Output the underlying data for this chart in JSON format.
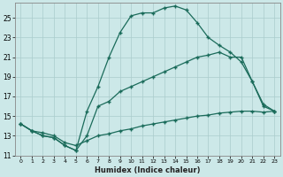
{
  "xlabel": "Humidex (Indice chaleur)",
  "background_color": "#cce8e8",
  "grid_color": "#aacccc",
  "line_color": "#1a6b5a",
  "xlim": [
    -0.5,
    23.5
  ],
  "ylim": [
    11,
    26.5
  ],
  "xticks": [
    0,
    1,
    2,
    3,
    4,
    5,
    6,
    7,
    8,
    9,
    10,
    11,
    12,
    13,
    14,
    15,
    16,
    17,
    18,
    19,
    20,
    21,
    22,
    23
  ],
  "yticks": [
    11,
    13,
    15,
    17,
    19,
    21,
    23,
    25
  ],
  "line1_x": [
    0,
    1,
    2,
    3,
    4,
    5,
    6,
    7,
    8,
    9,
    10,
    11,
    12,
    13,
    14,
    15,
    16,
    17,
    18,
    19,
    20,
    21,
    22,
    23
  ],
  "line1_y": [
    14.2,
    13.5,
    13.0,
    12.8,
    12.0,
    11.5,
    15.5,
    18.0,
    21.0,
    23.5,
    25.2,
    25.5,
    25.5,
    26.0,
    26.2,
    25.8,
    24.5,
    23.0,
    22.2,
    21.5,
    20.5,
    18.5,
    16.2,
    15.5
  ],
  "line2_x": [
    0,
    1,
    2,
    3,
    4,
    5,
    6,
    7,
    8,
    9,
    10,
    11,
    12,
    13,
    14,
    15,
    16,
    17,
    18,
    19,
    20,
    21,
    22,
    23
  ],
  "line2_y": [
    14.2,
    13.5,
    13.0,
    12.8,
    12.0,
    11.5,
    13.0,
    16.0,
    16.5,
    17.5,
    18.0,
    18.5,
    19.0,
    19.5,
    20.0,
    20.5,
    21.0,
    21.2,
    21.5,
    21.0,
    21.0,
    18.5,
    16.0,
    15.5
  ],
  "line3_x": [
    0,
    1,
    2,
    3,
    4,
    5,
    6,
    7,
    8,
    9,
    10,
    11,
    12,
    13,
    14,
    15,
    16,
    17,
    18,
    19,
    20,
    21,
    22,
    23
  ],
  "line3_y": [
    14.2,
    13.5,
    13.3,
    13.0,
    12.3,
    12.0,
    12.5,
    13.0,
    13.2,
    13.5,
    13.7,
    14.0,
    14.2,
    14.4,
    14.6,
    14.8,
    15.0,
    15.1,
    15.3,
    15.4,
    15.5,
    15.5,
    15.4,
    15.5
  ]
}
